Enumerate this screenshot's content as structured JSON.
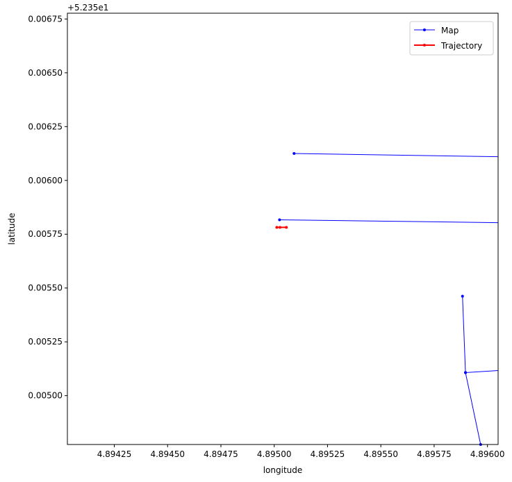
{
  "chart_data": {
    "type": "line",
    "xlabel": "longitude",
    "ylabel": "latitude",
    "offset_text": "+5.235e1",
    "xlim": [
      4.89403,
      4.89605
    ],
    "ylim": [
      0.004773,
      0.006777
    ],
    "x_ticks": [
      {
        "value": 4.89425,
        "label": "4.89425"
      },
      {
        "value": 4.8945,
        "label": "4.89450"
      },
      {
        "value": 4.89475,
        "label": "4.89475"
      },
      {
        "value": 4.895,
        "label": "4.89500"
      },
      {
        "value": 4.89525,
        "label": "4.89525"
      },
      {
        "value": 4.8955,
        "label": "4.89550"
      },
      {
        "value": 4.89575,
        "label": "4.89575"
      },
      {
        "value": 4.896,
        "label": "4.89600"
      }
    ],
    "y_ticks": [
      {
        "value": 0.005,
        "label": "0.00500"
      },
      {
        "value": 0.00525,
        "label": "0.00525"
      },
      {
        "value": 0.0055,
        "label": "0.00550"
      },
      {
        "value": 0.00575,
        "label": "0.00575"
      },
      {
        "value": 0.006,
        "label": "0.00600"
      },
      {
        "value": 0.00625,
        "label": "0.00625"
      },
      {
        "value": 0.0065,
        "label": "0.00650"
      },
      {
        "value": 0.00675,
        "label": "0.00675"
      }
    ],
    "legend": {
      "position": "top-right",
      "entries": [
        "Map",
        "Trajectory"
      ]
    },
    "series": [
      {
        "name": "Map",
        "color": "#0000ff",
        "segments": [
          [
            [
              4.895093,
              0.006125
            ],
            [
              4.89618,
              0.006108
            ]
          ],
          [
            [
              4.895025,
              0.005817
            ],
            [
              4.89618,
              0.005802
            ]
          ],
          [
            [
              4.895883,
              0.005462
            ],
            [
              4.895897,
              0.005107
            ],
            [
              4.89618,
              0.005125
            ]
          ],
          [
            [
              4.895897,
              0.005107
            ],
            [
              4.895968,
              0.004773
            ]
          ]
        ]
      },
      {
        "name": "Trajectory",
        "color": "#ff0000",
        "segments": [
          [
            [
              4.895012,
              0.005782
            ],
            [
              4.895027,
              0.005782
            ],
            [
              4.895057,
              0.005782
            ]
          ]
        ]
      }
    ]
  }
}
